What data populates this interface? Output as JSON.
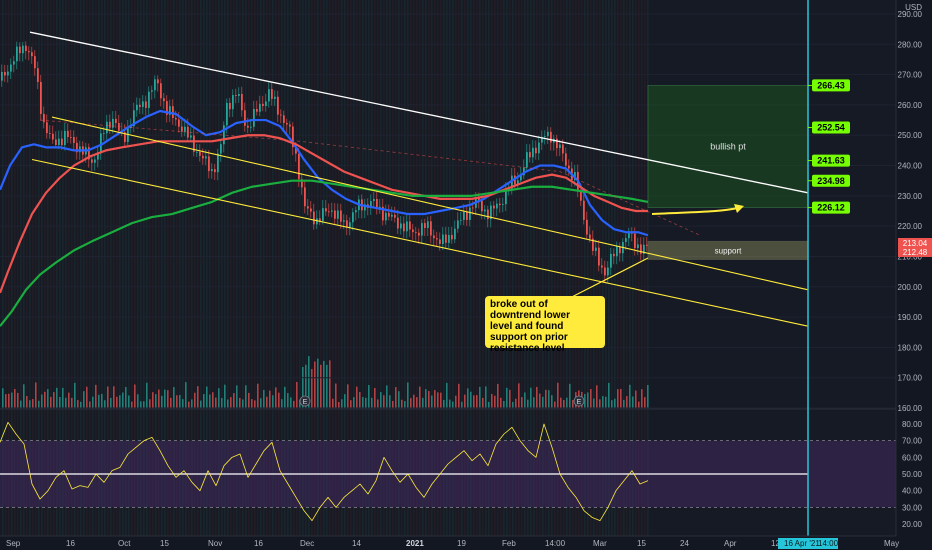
{
  "chart_data": {
    "type": "candlestick",
    "currency": "USD",
    "price_axis": {
      "ticks": [
        290,
        280,
        270,
        260,
        250,
        240,
        230,
        220,
        210,
        200,
        190,
        180,
        170,
        160
      ],
      "range": [
        158,
        292
      ],
      "last_price_high": "213.04",
      "last_price_low": "212.48"
    },
    "rsi_axis": {
      "ticks": [
        80,
        70,
        60,
        50,
        40,
        30,
        20
      ],
      "range": [
        14,
        91
      ],
      "band_upper": 70,
      "band_lower": 30,
      "midline": 50
    },
    "time_axis": {
      "labels": [
        "Sep",
        "16",
        "Oct",
        "15",
        "Nov",
        "16",
        "Dec",
        "14",
        "2021",
        "19",
        "Feb",
        "14:00",
        "Mar",
        "15",
        "24",
        "Apr",
        "12",
        "May"
      ],
      "cursor_date": "16 Apr '21",
      "cursor_time": "14:00"
    },
    "price_path": [
      [
        0,
        268
      ],
      [
        14,
        276
      ],
      [
        26,
        280
      ],
      [
        34,
        272
      ],
      [
        42,
        255
      ],
      [
        52,
        247
      ],
      [
        64,
        250
      ],
      [
        78,
        246
      ],
      [
        92,
        241
      ],
      [
        104,
        252
      ],
      [
        112,
        256
      ],
      [
        122,
        248
      ],
      [
        134,
        258
      ],
      [
        146,
        262
      ],
      [
        156,
        268
      ],
      [
        166,
        258
      ],
      [
        178,
        254
      ],
      [
        190,
        248
      ],
      [
        202,
        242
      ],
      [
        212,
        238
      ],
      [
        220,
        246
      ],
      [
        226,
        260
      ],
      [
        236,
        264
      ],
      [
        246,
        252
      ],
      [
        256,
        258
      ],
      [
        268,
        264
      ],
      [
        278,
        258
      ],
      [
        288,
        252
      ],
      [
        296,
        242
      ],
      [
        304,
        226
      ],
      [
        316,
        222
      ],
      [
        330,
        226
      ],
      [
        344,
        220
      ],
      [
        356,
        226
      ],
      [
        370,
        228
      ],
      [
        384,
        224
      ],
      [
        398,
        221
      ],
      [
        412,
        218
      ],
      [
        426,
        220
      ],
      [
        440,
        214
      ],
      [
        452,
        218
      ],
      [
        464,
        224
      ],
      [
        476,
        228
      ],
      [
        488,
        224
      ],
      [
        500,
        228
      ],
      [
        510,
        234
      ],
      [
        518,
        236
      ],
      [
        526,
        242
      ],
      [
        534,
        246
      ],
      [
        542,
        249
      ],
      [
        550,
        250
      ],
      [
        558,
        246
      ],
      [
        566,
        240
      ],
      [
        574,
        236
      ],
      [
        582,
        224
      ],
      [
        590,
        214
      ],
      [
        598,
        208
      ],
      [
        604,
        205
      ],
      [
        612,
        210
      ],
      [
        620,
        214
      ],
      [
        628,
        217
      ],
      [
        636,
        214
      ],
      [
        642,
        212
      ],
      [
        648,
        213
      ]
    ],
    "series": [
      {
        "color": "#2962ff",
        "points": [
          [
            0,
            232
          ],
          [
            10,
            240
          ],
          [
            22,
            246
          ],
          [
            34,
            247
          ],
          [
            46,
            246
          ],
          [
            60,
            246
          ],
          [
            74,
            245
          ],
          [
            88,
            245
          ],
          [
            102,
            247
          ],
          [
            116,
            250
          ],
          [
            130,
            253
          ],
          [
            146,
            256
          ],
          [
            160,
            258
          ],
          [
            176,
            257
          ],
          [
            192,
            253
          ],
          [
            206,
            250
          ],
          [
            220,
            251
          ],
          [
            236,
            254
          ],
          [
            252,
            255
          ],
          [
            266,
            255
          ],
          [
            280,
            253
          ],
          [
            292,
            248
          ],
          [
            304,
            242
          ],
          [
            318,
            236
          ],
          [
            332,
            232
          ],
          [
            346,
            229
          ],
          [
            360,
            227
          ],
          [
            376,
            226
          ],
          [
            392,
            225
          ],
          [
            408,
            224
          ],
          [
            424,
            224
          ],
          [
            440,
            225
          ],
          [
            456,
            226
          ],
          [
            470,
            227
          ],
          [
            484,
            229
          ],
          [
            498,
            232
          ],
          [
            512,
            235
          ],
          [
            526,
            238
          ],
          [
            540,
            240
          ],
          [
            554,
            240
          ],
          [
            566,
            239
          ],
          [
            578,
            235
          ],
          [
            590,
            227
          ],
          [
            602,
            222
          ],
          [
            614,
            219
          ],
          [
            626,
            218
          ],
          [
            638,
            218
          ],
          [
            648,
            217
          ]
        ]
      },
      {
        "color": "#ef5350",
        "points": [
          [
            0,
            198
          ],
          [
            8,
            205
          ],
          [
            20,
            215
          ],
          [
            32,
            224
          ],
          [
            46,
            231
          ],
          [
            60,
            236
          ],
          [
            74,
            240
          ],
          [
            90,
            243
          ],
          [
            106,
            245
          ],
          [
            122,
            246
          ],
          [
            140,
            247
          ],
          [
            158,
            248
          ],
          [
            176,
            248
          ],
          [
            194,
            248
          ],
          [
            212,
            248
          ],
          [
            230,
            249
          ],
          [
            248,
            250
          ],
          [
            264,
            250
          ],
          [
            280,
            249
          ],
          [
            296,
            247
          ],
          [
            312,
            244
          ],
          [
            328,
            241
          ],
          [
            344,
            238
          ],
          [
            360,
            236
          ],
          [
            376,
            234
          ],
          [
            392,
            232
          ],
          [
            408,
            231
          ],
          [
            424,
            230
          ],
          [
            440,
            229
          ],
          [
            456,
            229
          ],
          [
            472,
            229
          ],
          [
            488,
            230
          ],
          [
            504,
            232
          ],
          [
            520,
            234
          ],
          [
            536,
            236
          ],
          [
            552,
            237
          ],
          [
            566,
            236
          ],
          [
            580,
            233
          ],
          [
            594,
            230
          ],
          [
            608,
            228
          ],
          [
            622,
            226
          ],
          [
            636,
            225
          ],
          [
            648,
            225
          ]
        ]
      },
      {
        "color": "#1aae3f",
        "points": [
          [
            0,
            187
          ],
          [
            12,
            192
          ],
          [
            26,
            199
          ],
          [
            40,
            204
          ],
          [
            56,
            208
          ],
          [
            74,
            212
          ],
          [
            92,
            215
          ],
          [
            112,
            218
          ],
          [
            132,
            221
          ],
          [
            152,
            223
          ],
          [
            172,
            224
          ],
          [
            192,
            226
          ],
          [
            212,
            228
          ],
          [
            232,
            231
          ],
          [
            252,
            233
          ],
          [
            272,
            234
          ],
          [
            292,
            235
          ],
          [
            312,
            235
          ],
          [
            332,
            234
          ],
          [
            352,
            233
          ],
          [
            372,
            232
          ],
          [
            392,
            231
          ],
          [
            412,
            230
          ],
          [
            432,
            230
          ],
          [
            452,
            230
          ],
          [
            472,
            230
          ],
          [
            492,
            231
          ],
          [
            512,
            232
          ],
          [
            532,
            233
          ],
          [
            552,
            233
          ],
          [
            572,
            232
          ],
          [
            592,
            231
          ],
          [
            612,
            230
          ],
          [
            632,
            229
          ],
          [
            648,
            228
          ]
        ]
      },
      {
        "color": "#ffeb3b",
        "points": [
          [
            0,
            69
          ],
          [
            8,
            81
          ],
          [
            16,
            74
          ],
          [
            24,
            68
          ],
          [
            32,
            44
          ],
          [
            40,
            35
          ],
          [
            48,
            40
          ],
          [
            56,
            48
          ],
          [
            64,
            52
          ],
          [
            72,
            41
          ],
          [
            80,
            43
          ],
          [
            88,
            42
          ],
          [
            96,
            50
          ],
          [
            104,
            45
          ],
          [
            112,
            52
          ],
          [
            120,
            54
          ],
          [
            128,
            62
          ],
          [
            136,
            66
          ],
          [
            144,
            70
          ],
          [
            152,
            72
          ],
          [
            160,
            64
          ],
          [
            168,
            55
          ],
          [
            176,
            48
          ],
          [
            184,
            52
          ],
          [
            192,
            45
          ],
          [
            200,
            40
          ],
          [
            208,
            52
          ],
          [
            216,
            43
          ],
          [
            224,
            55
          ],
          [
            232,
            60
          ],
          [
            240,
            62
          ],
          [
            248,
            48
          ],
          [
            256,
            56
          ],
          [
            264,
            64
          ],
          [
            272,
            69
          ],
          [
            280,
            52
          ],
          [
            288,
            44
          ],
          [
            296,
            36
          ],
          [
            304,
            28
          ],
          [
            312,
            22
          ],
          [
            320,
            30
          ],
          [
            328,
            36
          ],
          [
            336,
            30
          ],
          [
            344,
            36
          ],
          [
            352,
            40
          ],
          [
            360,
            44
          ],
          [
            368,
            38
          ],
          [
            376,
            46
          ],
          [
            384,
            60
          ],
          [
            392,
            52
          ],
          [
            400,
            45
          ],
          [
            408,
            50
          ],
          [
            416,
            42
          ],
          [
            424,
            36
          ],
          [
            432,
            44
          ],
          [
            440,
            50
          ],
          [
            448,
            56
          ],
          [
            456,
            60
          ],
          [
            464,
            64
          ],
          [
            472,
            58
          ],
          [
            480,
            62
          ],
          [
            488,
            55
          ],
          [
            496,
            68
          ],
          [
            504,
            74
          ],
          [
            512,
            78
          ],
          [
            520,
            70
          ],
          [
            528,
            64
          ],
          [
            536,
            60
          ],
          [
            544,
            80
          ],
          [
            552,
            66
          ],
          [
            560,
            50
          ],
          [
            568,
            42
          ],
          [
            576,
            36
          ],
          [
            584,
            28
          ],
          [
            592,
            24
          ],
          [
            600,
            22
          ],
          [
            608,
            30
          ],
          [
            616,
            40
          ],
          [
            624,
            46
          ],
          [
            632,
            52
          ],
          [
            640,
            44
          ],
          [
            648,
            46
          ]
        ]
      }
    ],
    "trendlines": [
      {
        "color": "#ffffff",
        "from": [
          30,
          284
        ],
        "to": [
          808,
          231
        ]
      },
      {
        "color": "#ffeb3b",
        "from": [
          52,
          256
        ],
        "to": [
          808,
          199
        ]
      },
      {
        "color": "#ffeb3b",
        "from": [
          32,
          242
        ],
        "to": [
          808,
          187
        ]
      }
    ],
    "zones": [
      {
        "label": "bullish pt",
        "color": "#1b5e20",
        "price_top": 266.43,
        "price_bottom": 226.12
      },
      {
        "label": "support",
        "color": "#c8c87a",
        "price_top": 215,
        "price_bottom": 209
      }
    ],
    "price_tags": [
      "266.43",
      "252.54",
      "241.63",
      "234.98",
      "226.12"
    ],
    "callout": {
      "lines": [
        "broke out of",
        "downtrend lower",
        "level and found",
        "support on prior",
        "resistance level"
      ]
    },
    "earnings_marks": [
      "E",
      "E"
    ]
  }
}
